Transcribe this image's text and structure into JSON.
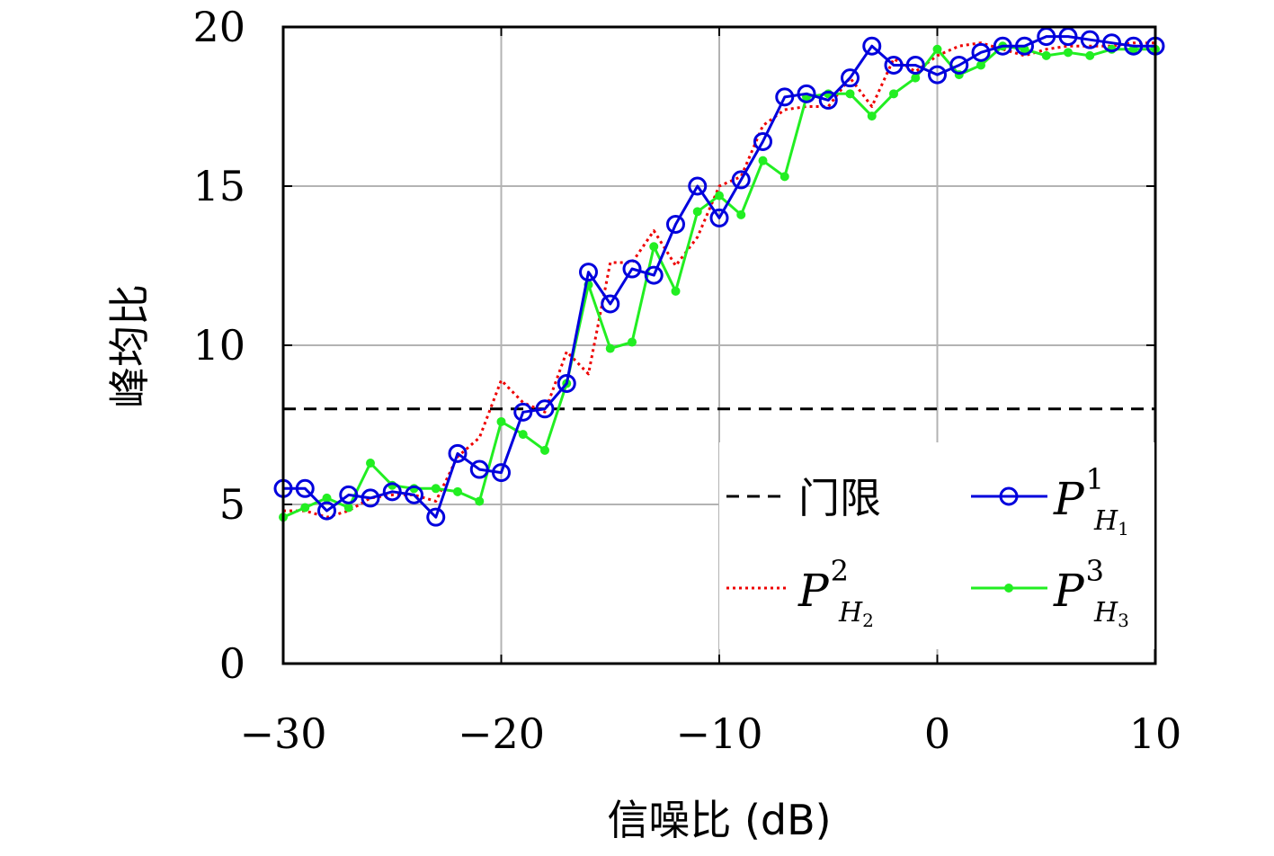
{
  "chart_data": {
    "type": "line",
    "title": "",
    "xlabel": "信噪比 (dB)",
    "ylabel": "峰均比",
    "xlim": [
      -30,
      10
    ],
    "ylim": [
      0,
      20
    ],
    "xticks": [
      -30,
      -20,
      -10,
      0,
      10
    ],
    "yticks": [
      0,
      5,
      10,
      15,
      20
    ],
    "xtick_labels": [
      "−30",
      "−20",
      "−10",
      "0",
      "10"
    ],
    "ytick_labels": [
      "0",
      "5",
      "10",
      "15",
      "20"
    ],
    "grid": true,
    "legend_position": "bottom-right",
    "threshold": {
      "name": "门限",
      "value": 8,
      "color": "#000000",
      "style": "dashed"
    },
    "x": [
      -30,
      -29,
      -28,
      -27,
      -26,
      -25,
      -24,
      -23,
      -22,
      -21,
      -20,
      -19,
      -18,
      -17,
      -16,
      -15,
      -14,
      -13,
      -12,
      -11,
      -10,
      -9,
      -8,
      -7,
      -6,
      -5,
      -4,
      -3,
      -2,
      -1,
      0,
      1,
      2,
      3,
      4,
      5,
      6,
      7,
      8,
      9,
      10
    ],
    "series": [
      {
        "name": "P_{H_1}^1",
        "label_main": "P",
        "label_sup": "1",
        "label_sub_main": "H",
        "label_sub_sub": "1",
        "color": "#0000dd",
        "style": "solid-circle",
        "values": [
          5.5,
          5.5,
          4.8,
          5.3,
          5.2,
          5.4,
          5.3,
          4.6,
          6.6,
          6.1,
          6.0,
          7.9,
          8.0,
          8.8,
          12.3,
          11.3,
          12.4,
          12.2,
          13.8,
          15.0,
          14.0,
          15.2,
          16.4,
          17.8,
          17.9,
          17.7,
          18.4,
          19.4,
          18.8,
          18.8,
          18.5,
          18.8,
          19.2,
          19.4,
          19.4,
          19.7,
          19.7,
          19.6,
          19.5,
          19.4,
          19.4
        ]
      },
      {
        "name": "P_{H_2}^2",
        "label_main": "P",
        "label_sup": "2",
        "label_sub_main": "H",
        "label_sub_sub": "2",
        "color": "#ee0000",
        "style": "dotted",
        "values": [
          4.8,
          4.8,
          4.6,
          4.8,
          5.2,
          5.3,
          5.3,
          5.1,
          6.5,
          7.1,
          8.9,
          8.2,
          7.9,
          9.8,
          9.1,
          12.6,
          12.6,
          13.6,
          12.5,
          13.4,
          15.0,
          15.3,
          16.9,
          17.4,
          17.5,
          17.5,
          18.4,
          17.5,
          19.0,
          18.6,
          19.1,
          19.4,
          19.5,
          19.3,
          19.1,
          19.3,
          19.4,
          19.4,
          19.4,
          19.5,
          19.5
        ]
      },
      {
        "name": "P_{H_3}^3",
        "label_main": "P",
        "label_sup": "3",
        "label_sub_main": "H",
        "label_sub_sub": "3",
        "color": "#22ee22",
        "style": "solid-dot",
        "values": [
          4.6,
          4.9,
          5.2,
          4.9,
          6.3,
          5.6,
          5.5,
          5.5,
          5.4,
          5.1,
          7.6,
          7.2,
          6.7,
          8.8,
          11.9,
          9.9,
          10.1,
          13.1,
          11.7,
          14.2,
          14.7,
          14.1,
          15.8,
          15.3,
          17.8,
          17.9,
          17.9,
          17.2,
          17.9,
          18.4,
          19.3,
          18.5,
          18.8,
          19.4,
          19.3,
          19.1,
          19.2,
          19.1,
          19.3,
          19.3,
          19.3
        ]
      }
    ]
  }
}
